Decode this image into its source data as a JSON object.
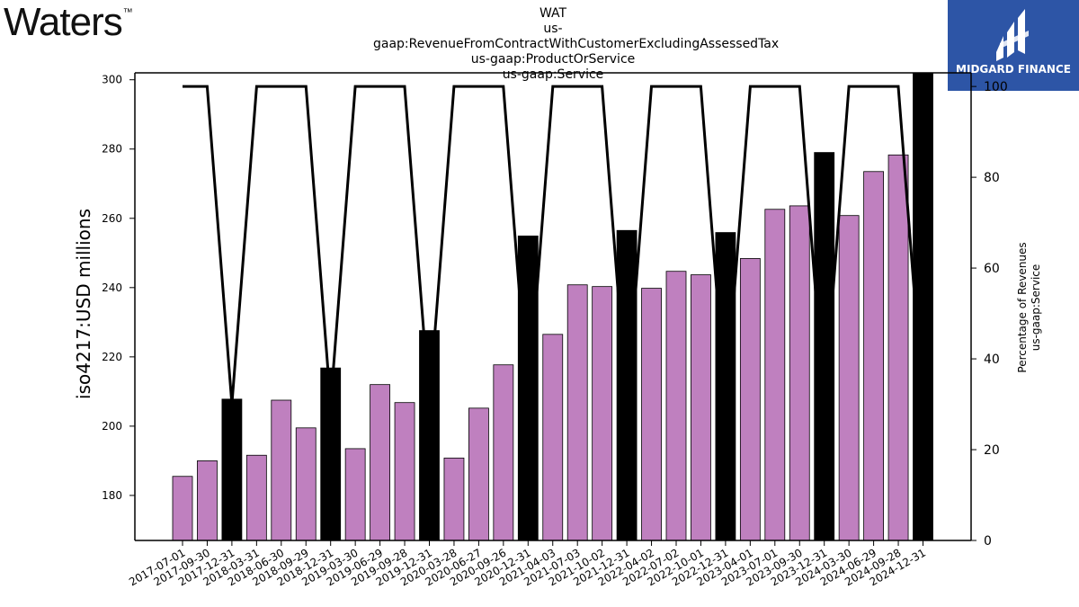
{
  "logo_left": {
    "text": "Waters",
    "tm": "™"
  },
  "header": {
    "title_lines": [
      "WAT",
      "us-gaap:RevenueFromContractWithCustomerExcludingAssessedTax",
      "us-gaap:ProductOrService",
      "us-gaap:Service"
    ]
  },
  "brand": {
    "name": "MIDGARD FINANCE",
    "bg_color": "#2d55a6"
  },
  "chart_data": {
    "type": "bar",
    "ylabel": "iso4217:USD  millions",
    "y2label_lines": [
      "Percentage of Revenues",
      "us-gaap:Service"
    ],
    "ylim": [
      167,
      302
    ],
    "y_ticks": [
      180,
      200,
      220,
      240,
      260,
      280,
      300
    ],
    "y2lim": [
      0,
      103
    ],
    "y2_ticks": [
      0,
      20,
      40,
      60,
      80,
      100
    ],
    "colors": {
      "quarter_bar": "#bf80bf",
      "annual_bar": "#000000",
      "line": "#000000"
    },
    "categories": [
      "2017-07-01",
      "2017-09-30",
      "2017-12-31",
      "2018-03-31",
      "2018-06-30",
      "2018-09-29",
      "2018-12-31",
      "2019-03-30",
      "2019-06-29",
      "2019-09-28",
      "2019-12-31",
      "2020-03-28",
      "2020-06-27",
      "2020-09-26",
      "2020-12-31",
      "2021-04-03",
      "2021-07-03",
      "2021-10-02",
      "2021-12-31",
      "2022-04-02",
      "2022-07-02",
      "2022-10-01",
      "2022-12-31",
      "2023-04-01",
      "2023-07-01",
      "2023-09-30",
      "2023-12-31",
      "2024-03-30",
      "2024-06-29",
      "2024-09-28",
      "2024-12-31"
    ],
    "series": [
      {
        "values": [
          185.5,
          190.0,
          207.8,
          191.6,
          207.5,
          199.5,
          216.8,
          193.5,
          212.0,
          206.8,
          227.6,
          190.8,
          205.2,
          217.7,
          254.9,
          226.5,
          240.8,
          240.3,
          256.5,
          239.8,
          244.7,
          243.7,
          255.9,
          248.4,
          262.6,
          263.6,
          279.0,
          260.8,
          273.5,
          278.3,
          302.0
        ],
        "is_annual": [
          false,
          false,
          true,
          false,
          false,
          false,
          true,
          false,
          false,
          false,
          true,
          false,
          false,
          false,
          true,
          false,
          false,
          false,
          true,
          false,
          false,
          false,
          true,
          false,
          false,
          false,
          true,
          false,
          false,
          false,
          true
        ]
      },
      {
        "axis": "right",
        "type": "line",
        "values": [
          100,
          100,
          30,
          100,
          100,
          100,
          30,
          100,
          100,
          100,
          30,
          100,
          100,
          100,
          30,
          100,
          100,
          100,
          30,
          100,
          100,
          100,
          30,
          100,
          100,
          100,
          30,
          100,
          100,
          100,
          30
        ]
      }
    ]
  }
}
